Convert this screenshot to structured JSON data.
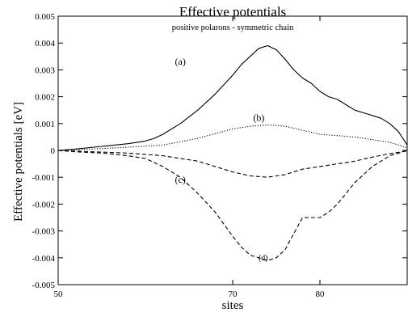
{
  "chart_data": {
    "type": "line",
    "title": "Effective potentials",
    "subtitle": "positive polarons - symmetric chain",
    "xlabel": "sites",
    "ylabel": "Effective potentials [eV]",
    "xlim": [
      50,
      90
    ],
    "ylim": [
      -0.005,
      0.005
    ],
    "grid": false,
    "x_ticks": [
      {
        "value": 50,
        "label": "50"
      },
      {
        "value": 70,
        "label": "70"
      },
      {
        "value": 80,
        "label": "80"
      }
    ],
    "y_ticks": [
      {
        "value": 0.005,
        "label": "0.005"
      },
      {
        "value": 0.004,
        "label": "0.004"
      },
      {
        "value": 0.003,
        "label": "0.003"
      },
      {
        "value": 0.002,
        "label": "0.002"
      },
      {
        "value": 0.001,
        "label": "0.001"
      },
      {
        "value": 0,
        "label": "0"
      },
      {
        "value": -0.001,
        "label": "-0.001"
      },
      {
        "value": -0.002,
        "label": "-0.002"
      },
      {
        "value": -0.003,
        "label": "-0.003"
      },
      {
        "value": -0.004,
        "label": "-0.004"
      },
      {
        "value": -0.005,
        "label": "-0.005"
      }
    ],
    "series": [
      {
        "style": "solid",
        "x": [
          50,
          52,
          55,
          58,
          60,
          61,
          62,
          64,
          66,
          68,
          70,
          71,
          72,
          73,
          74,
          75,
          76,
          77,
          78,
          79,
          80,
          81,
          82,
          83,
          84,
          85,
          86,
          87,
          88,
          89,
          90
        ],
        "y": [
          0.0,
          5e-05,
          0.00015,
          0.00025,
          0.00035,
          0.00045,
          0.0006,
          0.001,
          0.0015,
          0.0021,
          0.0028,
          0.0032,
          0.0035,
          0.0038,
          0.0039,
          0.00375,
          0.0034,
          0.003,
          0.0027,
          0.0025,
          0.0022,
          0.002,
          0.0019,
          0.0017,
          0.0015,
          0.0014,
          0.0013,
          0.0012,
          0.001,
          0.0007,
          0.0002
        ]
      },
      {
        "style": "dotted",
        "x": [
          50,
          54,
          58,
          62,
          66,
          70,
          72,
          74,
          76,
          78,
          80,
          82,
          84,
          86,
          88,
          90
        ],
        "y": [
          0.0,
          5e-05,
          0.00012,
          0.0002,
          0.00045,
          0.0008,
          0.0009,
          0.00095,
          0.0009,
          0.00075,
          0.0006,
          0.00055,
          0.0005,
          0.0004,
          0.0003,
          0.0001
        ]
      },
      {
        "style": "dashed",
        "x": [
          50,
          54,
          58,
          62,
          66,
          70,
          72,
          74,
          76,
          78,
          80,
          82,
          84,
          86,
          88,
          90
        ],
        "y": [
          0.0,
          -5e-05,
          -0.0001,
          -0.0002,
          -0.0004,
          -0.0008,
          -0.00095,
          -0.001,
          -0.0009,
          -0.0007,
          -0.0006,
          -0.0005,
          -0.0004,
          -0.00025,
          -0.00012,
          -2e-05
        ]
      },
      {
        "style": "dashed",
        "x": [
          50,
          52,
          55,
          58,
          60,
          62,
          64,
          66,
          68,
          70,
          71,
          72,
          73,
          74,
          75,
          76,
          77,
          78,
          79,
          80,
          81,
          82,
          83,
          84,
          85,
          86,
          87,
          88,
          89,
          90
        ],
        "y": [
          0.0,
          -5e-05,
          -0.0001,
          -0.0002,
          -0.0003,
          -0.0006,
          -0.001,
          -0.0016,
          -0.0023,
          -0.0032,
          -0.0036,
          -0.0039,
          -0.004,
          -0.0041,
          -0.004,
          -0.0037,
          -0.0031,
          -0.0025,
          -0.0025,
          -0.0025,
          -0.0023,
          -0.002,
          -0.0016,
          -0.0012,
          -0.0009,
          -0.0006,
          -0.0004,
          -0.0002,
          -0.0001,
          0.0
        ]
      }
    ],
    "annotations": [
      {
        "text": "(a)",
        "x": 64,
        "y": 0.0032
      },
      {
        "text": "(b)",
        "x": 73,
        "y": 0.0011
      },
      {
        "text": "(c)",
        "x": 64,
        "y": -0.0012
      },
      {
        "text": "(d)",
        "x": 73.5,
        "y": -0.0041
      }
    ]
  }
}
